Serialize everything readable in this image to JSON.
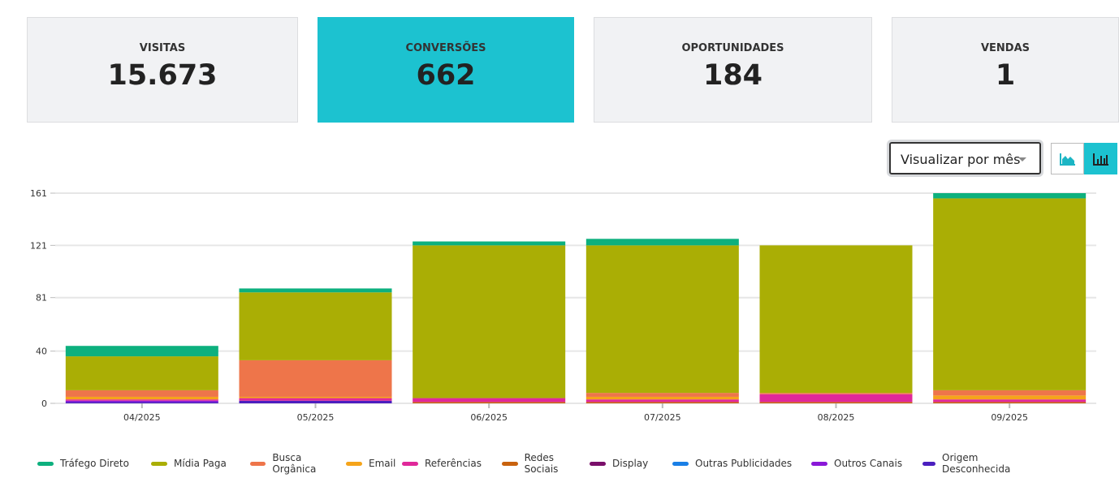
{
  "cards": [
    {
      "label": "VISITAS",
      "value": "15.673"
    },
    {
      "label": "CONVERSÕES",
      "value": "662"
    },
    {
      "label": "OPORTUNIDADES",
      "value": "184"
    },
    {
      "label": "VENDAS",
      "value": "1"
    }
  ],
  "controls": {
    "view_select": "Visualizar por mês",
    "area_icon": "area-chart-icon",
    "bar_icon": "bar-chart-icon"
  },
  "chart_data": {
    "type": "bar",
    "stacked": true,
    "title": "",
    "xlabel": "",
    "ylabel": "",
    "categories": [
      "04/2025",
      "05/2025",
      "06/2025",
      "07/2025",
      "08/2025",
      "09/2025"
    ],
    "yticks": [
      0,
      40,
      81,
      121,
      161
    ],
    "ylim": [
      0,
      161
    ],
    "grid": true,
    "legend_position": "bottom",
    "series": [
      {
        "name": "Origem Desconhecida",
        "color": "#4b1fbf",
        "values": [
          1,
          2,
          0,
          0,
          0,
          0
        ]
      },
      {
        "name": "Outros Canais",
        "color": "#8a18d8",
        "values": [
          1,
          0,
          0,
          0,
          0,
          0
        ]
      },
      {
        "name": "Outras Publicidades",
        "color": "#1a7fe6",
        "values": [
          0,
          0,
          0,
          0,
          0,
          0
        ]
      },
      {
        "name": "Display",
        "color": "#7a0f6a",
        "values": [
          0,
          0,
          0,
          0,
          0,
          0
        ]
      },
      {
        "name": "Redes Sociais",
        "color": "#c8620e",
        "values": [
          0,
          0,
          1,
          1,
          1,
          1
        ]
      },
      {
        "name": "Referências",
        "color": "#e0289a",
        "values": [
          1,
          2,
          3,
          2,
          6,
          2
        ]
      },
      {
        "name": "Email",
        "color": "#f5a41a",
        "values": [
          2,
          1,
          0,
          2,
          0,
          3
        ]
      },
      {
        "name": "Busca Orgânica",
        "color": "#ee754a",
        "values": [
          5,
          28,
          0,
          3,
          1,
          4
        ]
      },
      {
        "name": "Mídia Paga",
        "color": "#aaae05",
        "values": [
          26,
          52,
          117,
          113,
          113,
          147
        ]
      },
      {
        "name": "Tráfego Direto",
        "color": "#0db07e",
        "values": [
          8,
          3,
          3,
          5,
          0,
          4
        ]
      }
    ],
    "legend_order": [
      "Tráfego Direto",
      "Mídia Paga",
      "Busca Orgânica",
      "Email",
      "Referências",
      "Redes Sociais",
      "Display",
      "Outras Publicidades",
      "Outros Canais",
      "Origem Desconhecida"
    ]
  }
}
